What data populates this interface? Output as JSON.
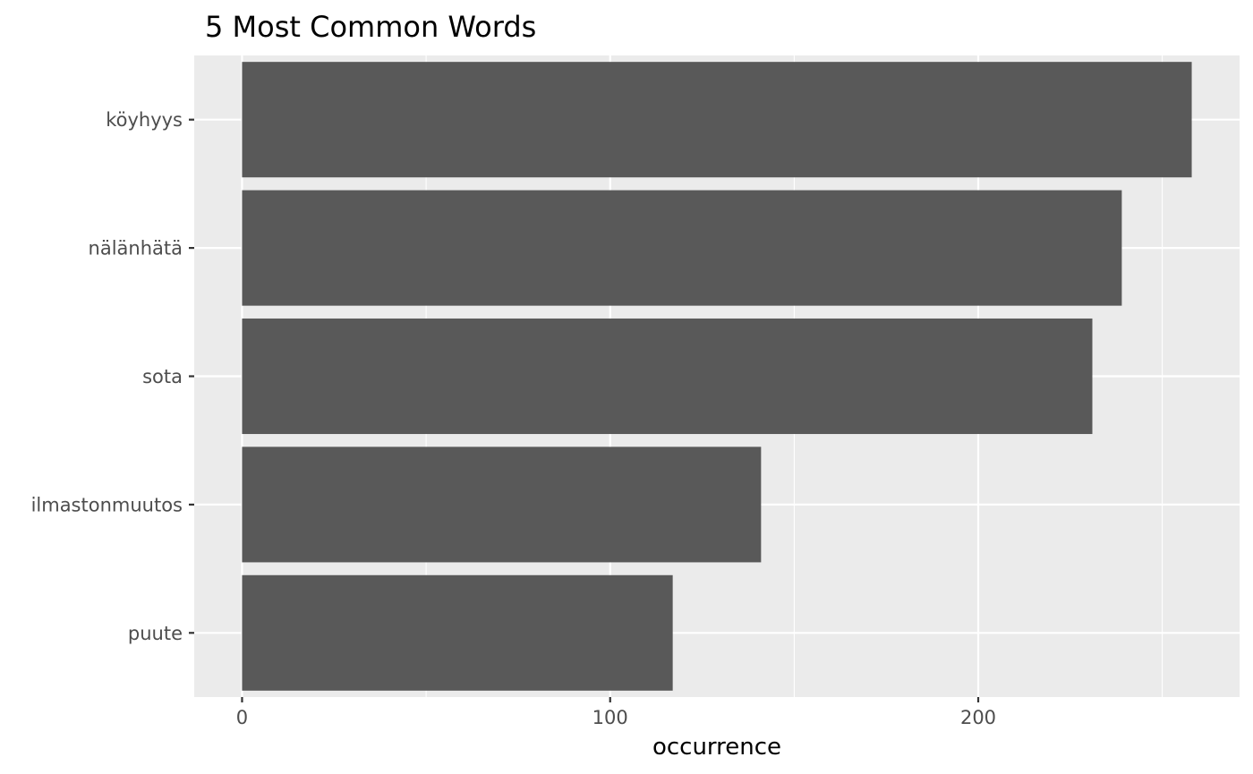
{
  "chart_data": {
    "type": "bar",
    "orientation": "horizontal",
    "title": "5 Most Common Words",
    "xlabel": "occurrence",
    "ylabel": "",
    "categories": [
      "köyhyys",
      "nälänhätä",
      "sota",
      "ilmastonmuutos",
      "puute"
    ],
    "values": [
      258,
      239,
      231,
      141,
      117
    ],
    "xlim": [
      -13,
      271
    ],
    "xticks": [
      0,
      100,
      200
    ],
    "grid": true,
    "legend": "none",
    "colors": {
      "bar": "#595959",
      "panel": "#ebebeb",
      "grid_major": "#ffffff",
      "tick_label": "#4d4d4d"
    }
  }
}
